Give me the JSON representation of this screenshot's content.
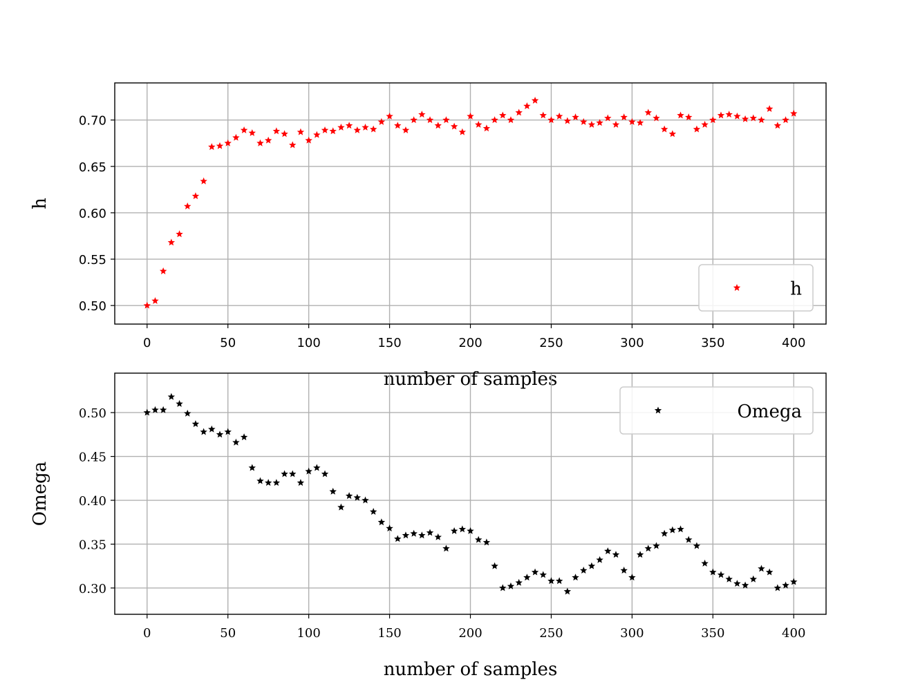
{
  "chart_data": [
    {
      "type": "scatter",
      "title": "",
      "xlabel": "number of samples",
      "ylabel": "h",
      "xlim": [
        -20,
        420
      ],
      "ylim": [
        0.48,
        0.74
      ],
      "xticks": [
        "0",
        "50",
        "100",
        "150",
        "200",
        "250",
        "300",
        "350",
        "400"
      ],
      "yticks": [
        "0.50",
        "0.55",
        "0.60",
        "0.65",
        "0.70"
      ],
      "grid": true,
      "legend_position": "bottom-right",
      "marker": "star",
      "color": "#ff0000",
      "series": [
        {
          "name": "h",
          "x": [
            0,
            5,
            10,
            15,
            20,
            25,
            30,
            35,
            40,
            45,
            50,
            55,
            60,
            65,
            70,
            75,
            80,
            85,
            90,
            95,
            100,
            105,
            110,
            115,
            120,
            125,
            130,
            135,
            140,
            145,
            150,
            155,
            160,
            165,
            170,
            175,
            180,
            185,
            190,
            195,
            200,
            205,
            210,
            215,
            220,
            225,
            230,
            235,
            240,
            245,
            250,
            255,
            260,
            265,
            270,
            275,
            280,
            285,
            290,
            295,
            300,
            305,
            310,
            315,
            320,
            325,
            330,
            335,
            340,
            345,
            350,
            355,
            360,
            365,
            370,
            375,
            380,
            385,
            390,
            395,
            400
          ],
          "values": [
            0.5,
            0.505,
            0.537,
            0.568,
            0.577,
            0.607,
            0.618,
            0.634,
            0.671,
            0.672,
            0.675,
            0.681,
            0.689,
            0.686,
            0.675,
            0.678,
            0.688,
            0.685,
            0.673,
            0.687,
            0.678,
            0.684,
            0.689,
            0.688,
            0.692,
            0.694,
            0.689,
            0.692,
            0.69,
            0.698,
            0.704,
            0.694,
            0.689,
            0.7,
            0.706,
            0.7,
            0.694,
            0.7,
            0.693,
            0.687,
            0.704,
            0.695,
            0.691,
            0.7,
            0.705,
            0.7,
            0.708,
            0.715,
            0.721,
            0.705,
            0.7,
            0.704,
            0.699,
            0.703,
            0.698,
            0.695,
            0.697,
            0.702,
            0.695,
            0.703,
            0.698,
            0.697,
            0.708,
            0.702,
            0.69,
            0.685,
            0.705,
            0.703,
            0.69,
            0.695,
            0.7,
            0.705,
            0.706,
            0.704,
            0.701,
            0.702,
            0.7,
            0.712,
            0.694,
            0.7,
            0.707
          ]
        }
      ]
    },
    {
      "type": "scatter",
      "title": "",
      "xlabel": "number of samples",
      "ylabel": "Omega",
      "xlim": [
        -20,
        420
      ],
      "ylim": [
        0.27,
        0.545
      ],
      "xticks": [
        "0",
        "50",
        "100",
        "150",
        "200",
        "250",
        "300",
        "350",
        "400"
      ],
      "yticks": [
        "0.30",
        "0.35",
        "0.40",
        "0.45",
        "0.50"
      ],
      "grid": true,
      "legend_position": "top-right",
      "marker": "star",
      "color": "#000000",
      "series": [
        {
          "name": "Omega",
          "x": [
            0,
            5,
            10,
            15,
            20,
            25,
            30,
            35,
            40,
            45,
            50,
            55,
            60,
            65,
            70,
            75,
            80,
            85,
            90,
            95,
            100,
            105,
            110,
            115,
            120,
            125,
            130,
            135,
            140,
            145,
            150,
            155,
            160,
            165,
            170,
            175,
            180,
            185,
            190,
            195,
            200,
            205,
            210,
            215,
            220,
            225,
            230,
            235,
            240,
            245,
            250,
            255,
            260,
            265,
            270,
            275,
            280,
            285,
            290,
            295,
            300,
            305,
            310,
            315,
            320,
            325,
            330,
            335,
            340,
            345,
            350,
            355,
            360,
            365,
            370,
            375,
            380,
            385,
            390,
            395,
            400
          ],
          "values": [
            0.5,
            0.503,
            0.503,
            0.518,
            0.51,
            0.499,
            0.487,
            0.478,
            0.481,
            0.475,
            0.478,
            0.466,
            0.472,
            0.437,
            0.422,
            0.42,
            0.42,
            0.43,
            0.43,
            0.42,
            0.433,
            0.437,
            0.43,
            0.41,
            0.392,
            0.405,
            0.403,
            0.4,
            0.387,
            0.375,
            0.368,
            0.356,
            0.36,
            0.362,
            0.36,
            0.363,
            0.358,
            0.345,
            0.365,
            0.367,
            0.365,
            0.355,
            0.352,
            0.325,
            0.3,
            0.302,
            0.306,
            0.312,
            0.318,
            0.315,
            0.308,
            0.308,
            0.296,
            0.312,
            0.32,
            0.325,
            0.332,
            0.342,
            0.338,
            0.32,
            0.312,
            0.338,
            0.345,
            0.348,
            0.362,
            0.366,
            0.367,
            0.355,
            0.348,
            0.328,
            0.318,
            0.315,
            0.31,
            0.305,
            0.303,
            0.31,
            0.322,
            0.318,
            0.3,
            0.303,
            0.307
          ]
        }
      ]
    }
  ]
}
